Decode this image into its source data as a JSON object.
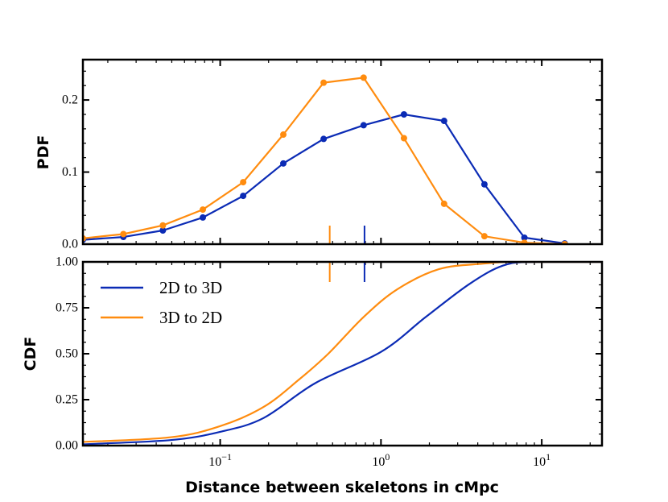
{
  "chart_data": [
    {
      "type": "line",
      "panel": "top",
      "ylabel": "PDF",
      "xscale": "log",
      "xlim": [
        0.014,
        23.7
      ],
      "ylim": [
        0,
        0.256
      ],
      "yticks": [
        0.0,
        0.1,
        0.2
      ],
      "ytick_labels": [
        "0.0",
        "0.1",
        "0.2"
      ],
      "markers": true,
      "x": [
        0.014,
        0.025,
        0.044,
        0.078,
        0.139,
        0.247,
        0.44,
        0.78,
        1.39,
        2.47,
        4.4,
        7.8,
        13.9
      ],
      "series": [
        {
          "name": "2D to 3D",
          "color": "#0b2bb5",
          "values": [
            0.006,
            0.01,
            0.019,
            0.037,
            0.067,
            0.112,
            0.146,
            0.165,
            0.18,
            0.171,
            0.083,
            0.009,
            0.001
          ]
        },
        {
          "name": "3D to 2D",
          "color": "#ff8c0f",
          "values": [
            0.008,
            0.014,
            0.026,
            0.048,
            0.086,
            0.152,
            0.224,
            0.231,
            0.147,
            0.056,
            0.011,
            0.002,
            0.0
          ]
        }
      ],
      "median_markers": [
        {
          "series": "2D to 3D",
          "x": 0.79
        },
        {
          "series": "3D to 2D",
          "x": 0.48
        }
      ]
    },
    {
      "type": "line",
      "panel": "bottom",
      "ylabel": "CDF",
      "xlabel": "Distance between skeletons in cMpc",
      "xscale": "log",
      "xlim": [
        0.014,
        23.7
      ],
      "ylim": [
        0,
        1
      ],
      "yticks": [
        0,
        0.25,
        0.5,
        0.75,
        1.0
      ],
      "ytick_labels": [
        "0.00",
        "0.25",
        "0.50",
        "0.75",
        "1.00"
      ],
      "xticks": [
        0.1,
        1,
        10
      ],
      "xtick_labels": [
        {
          "base": "10",
          "exp": "−1"
        },
        {
          "base": "10",
          "exp": "0"
        },
        {
          "base": "10",
          "exp": "1"
        }
      ],
      "legend": {
        "placement": "upper-left",
        "entries": [
          "2D to 3D",
          "3D to 2D"
        ]
      },
      "series": [
        {
          "name": "2D to 3D",
          "color": "#0b2bb5",
          "x": [
            0.014,
            0.049,
            0.1,
            0.186,
            0.39,
            1.0,
            1.9,
            3.55,
            5.75,
            8.9,
            23.7
          ],
          "values": [
            0.007,
            0.03,
            0.075,
            0.15,
            0.34,
            0.51,
            0.7,
            0.88,
            0.98,
            1.0,
            1.0
          ]
        },
        {
          "name": "3D to 2D",
          "color": "#ff8c0f",
          "x": [
            0.014,
            0.049,
            0.1,
            0.186,
            0.31,
            0.47,
            0.78,
            1.26,
            2.29,
            4.27,
            6.9,
            23.7
          ],
          "values": [
            0.02,
            0.045,
            0.106,
            0.21,
            0.36,
            0.5,
            0.7,
            0.85,
            0.96,
            0.99,
            1.0,
            1.0
          ]
        }
      ],
      "median_markers": [
        {
          "series": "2D to 3D",
          "x": 0.79
        },
        {
          "series": "3D to 2D",
          "x": 0.48
        }
      ]
    }
  ]
}
